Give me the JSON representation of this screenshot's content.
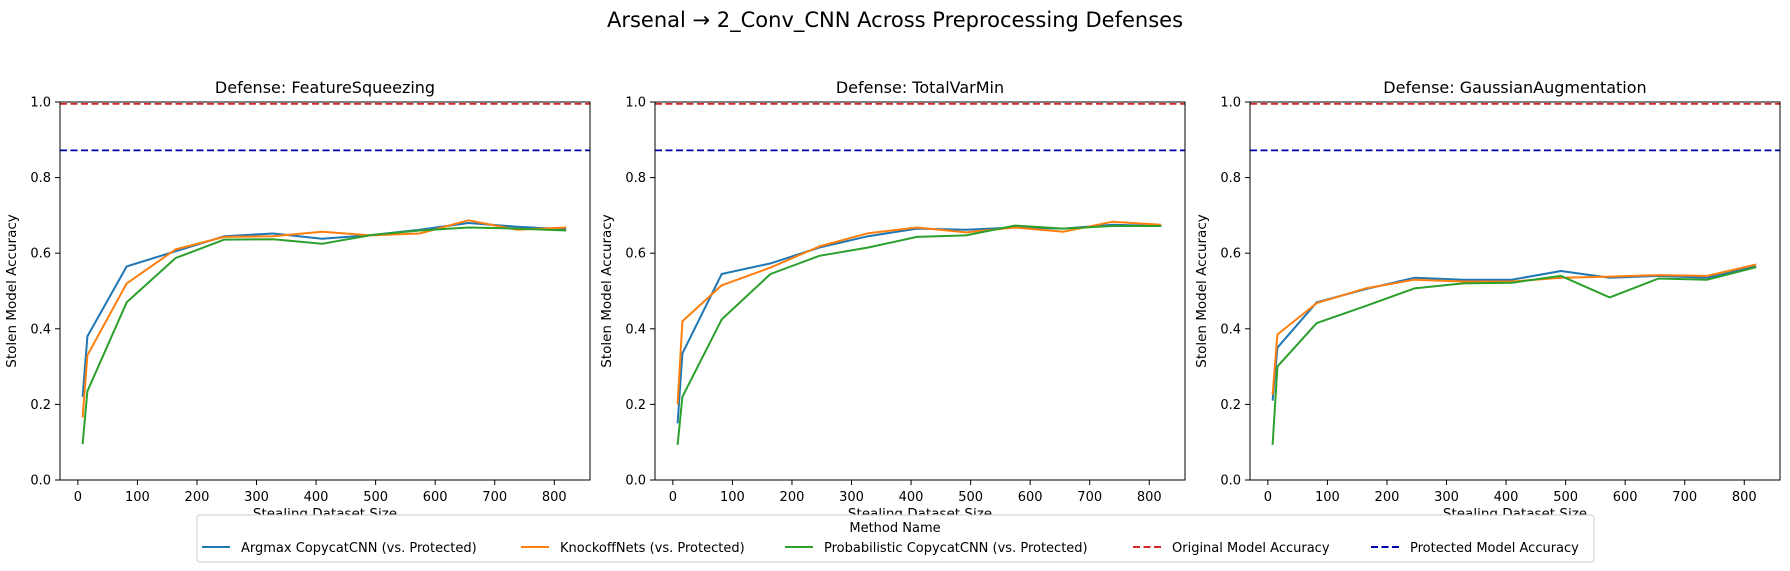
{
  "figure": {
    "title": "Arsenal → 2_Conv_CNN Across Preprocessing Defenses"
  },
  "legend": {
    "title": "Method Name",
    "entries": [
      {
        "label": "Argmax CopycatCNN (vs. Protected)",
        "color": "#1f77b4",
        "dash": false
      },
      {
        "label": "KnockoffNets (vs. Protected)",
        "color": "#ff7f0e",
        "dash": false
      },
      {
        "label": "Probabilistic CopycatCNN (vs. Protected)",
        "color": "#2ca02c",
        "dash": false
      },
      {
        "label": "Original Model Accuracy",
        "color": "#d62728",
        "dash": true
      },
      {
        "label": "Protected Model Accuracy",
        "color": "#0000aa",
        "dash": true
      }
    ]
  },
  "chart_data": [
    {
      "type": "line",
      "title": "Defense: FeatureSqueezing",
      "xlabel": "Stealing Dataset Size",
      "ylabel": "Stolen Model Accuracy",
      "xlim": [
        -30,
        860
      ],
      "ylim": [
        0,
        1
      ],
      "xticks": [
        0,
        100,
        200,
        300,
        400,
        500,
        600,
        700,
        800
      ],
      "yticks": [
        0.0,
        0.2,
        0.4,
        0.6,
        0.8,
        1.0
      ],
      "hlines": [
        {
          "name": "Original Model Accuracy",
          "y": 0.995,
          "color": "#d62728"
        },
        {
          "name": "Protected Model Accuracy",
          "y": 0.872,
          "color": "#0000aa"
        }
      ],
      "x": [
        8,
        16,
        82,
        164,
        246,
        328,
        410,
        492,
        574,
        656,
        738,
        820
      ],
      "series": [
        {
          "name": "Argmax CopycatCNN (vs. Protected)",
          "color": "#1f77b4",
          "values": [
            0.22,
            0.38,
            0.565,
            0.605,
            0.645,
            0.652,
            0.638,
            0.648,
            0.662,
            0.68,
            0.67,
            0.663
          ]
        },
        {
          "name": "KnockoffNets (vs. Protected)",
          "color": "#ff7f0e",
          "values": [
            0.165,
            0.33,
            0.52,
            0.61,
            0.643,
            0.645,
            0.657,
            0.647,
            0.652,
            0.687,
            0.662,
            0.668
          ]
        },
        {
          "name": "Probabilistic CopycatCNN (vs. Protected)",
          "color": "#2ca02c",
          "values": [
            0.095,
            0.235,
            0.47,
            0.587,
            0.636,
            0.637,
            0.625,
            0.648,
            0.66,
            0.668,
            0.665,
            0.66
          ]
        }
      ]
    },
    {
      "type": "line",
      "title": "Defense: TotalVarMin",
      "xlabel": "Stealing Dataset Size",
      "ylabel": "Stolen Model Accuracy",
      "xlim": [
        -30,
        860
      ],
      "ylim": [
        0,
        1
      ],
      "xticks": [
        0,
        100,
        200,
        300,
        400,
        500,
        600,
        700,
        800
      ],
      "yticks": [
        0.0,
        0.2,
        0.4,
        0.6,
        0.8,
        1.0
      ],
      "hlines": [
        {
          "name": "Original Model Accuracy",
          "y": 0.995,
          "color": "#d62728"
        },
        {
          "name": "Protected Model Accuracy",
          "y": 0.872,
          "color": "#0000aa"
        }
      ],
      "x": [
        8,
        16,
        82,
        164,
        246,
        328,
        410,
        492,
        574,
        656,
        738,
        820
      ],
      "series": [
        {
          "name": "Argmax CopycatCNN (vs. Protected)",
          "color": "#1f77b4",
          "values": [
            0.15,
            0.335,
            0.545,
            0.573,
            0.615,
            0.645,
            0.665,
            0.662,
            0.668,
            0.665,
            0.675,
            0.672
          ]
        },
        {
          "name": "KnockoffNets (vs. Protected)",
          "color": "#ff7f0e",
          "values": [
            0.2,
            0.42,
            0.515,
            0.562,
            0.618,
            0.653,
            0.668,
            0.655,
            0.668,
            0.657,
            0.683,
            0.675
          ]
        },
        {
          "name": "Probabilistic CopycatCNN (vs. Protected)",
          "color": "#2ca02c",
          "values": [
            0.093,
            0.22,
            0.425,
            0.545,
            0.593,
            0.615,
            0.643,
            0.647,
            0.673,
            0.665,
            0.672,
            0.672
          ]
        }
      ]
    },
    {
      "type": "line",
      "title": "Defense: GaussianAugmentation",
      "xlabel": "Stealing Dataset Size",
      "ylabel": "Stolen Model Accuracy",
      "xlim": [
        -30,
        860
      ],
      "ylim": [
        0,
        1
      ],
      "xticks": [
        0,
        100,
        200,
        300,
        400,
        500,
        600,
        700,
        800
      ],
      "yticks": [
        0.0,
        0.2,
        0.4,
        0.6,
        0.8,
        1.0
      ],
      "hlines": [
        {
          "name": "Original Model Accuracy",
          "y": 0.995,
          "color": "#d62728"
        },
        {
          "name": "Protected Model Accuracy",
          "y": 0.872,
          "color": "#0000aa"
        }
      ],
      "x": [
        8,
        16,
        82,
        164,
        246,
        328,
        410,
        492,
        574,
        656,
        738,
        820
      ],
      "series": [
        {
          "name": "Argmax CopycatCNN (vs. Protected)",
          "color": "#1f77b4",
          "values": [
            0.21,
            0.35,
            0.47,
            0.505,
            0.535,
            0.53,
            0.53,
            0.553,
            0.535,
            0.54,
            0.535,
            0.565
          ]
        },
        {
          "name": "KnockoffNets (vs. Protected)",
          "color": "#ff7f0e",
          "values": [
            0.225,
            0.385,
            0.468,
            0.507,
            0.53,
            0.525,
            0.525,
            0.535,
            0.538,
            0.542,
            0.54,
            0.57
          ]
        },
        {
          "name": "Probabilistic CopycatCNN (vs. Protected)",
          "color": "#2ca02c",
          "values": [
            0.093,
            0.3,
            0.415,
            0.46,
            0.507,
            0.52,
            0.522,
            0.54,
            0.483,
            0.533,
            0.53,
            0.563
          ]
        }
      ]
    }
  ]
}
